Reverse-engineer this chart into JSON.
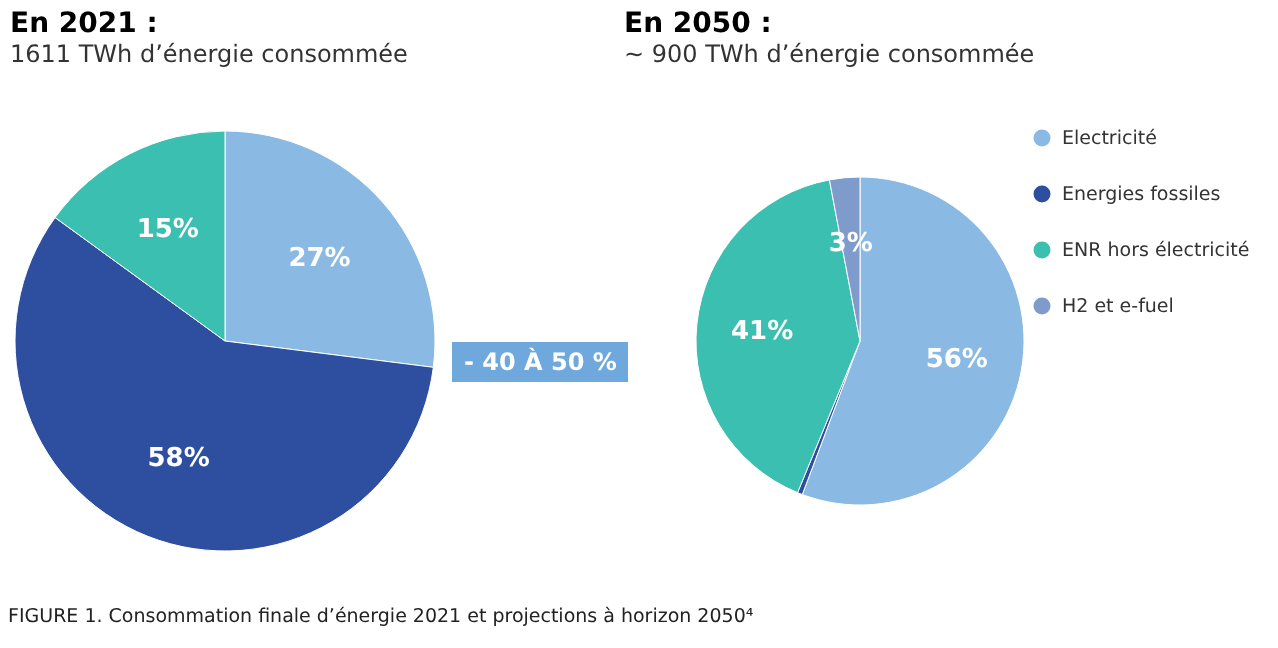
{
  "chart_data": [
    {
      "type": "pie",
      "title": "En 2021 :",
      "subtitle": "1611 TWh d’énergie consommée",
      "categories": [
        null,
        null,
        null
      ],
      "values": [
        27,
        58,
        15
      ],
      "value_labels": [
        "27%",
        "58%",
        "15%"
      ],
      "colors": [
        "#8ab9e3",
        "#2e4fa0",
        "#3bbfb0"
      ],
      "annotations": [
        "- 40 À 50 %",
        "FIGURE 1. Consommation finale d’énergie 2021 et projections à horizon 2050⁴"
      ]
    },
    {
      "type": "pie",
      "title": "En 2050 :",
      "subtitle": "~ 900 TWh d’énergie consommée",
      "categories": [
        "Electricité",
        "Energies fossiles",
        "ENR hors électricité",
        "H2 et e-fuel"
      ],
      "values": [
        56,
        0.5,
        41,
        3
      ],
      "value_labels": [
        "56%",
        null,
        "41%",
        "3%"
      ],
      "colors": [
        "#8ab9e3",
        "#2e4fa0",
        "#3bbfb0",
        "#7f9bcc"
      ],
      "legend": "right"
    }
  ]
}
